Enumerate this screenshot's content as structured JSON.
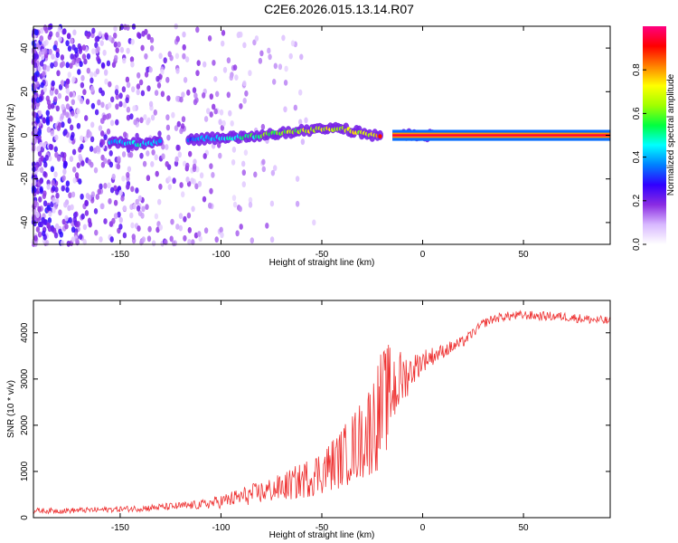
{
  "figure_title": "C2E6.2026.015.13.14.R07",
  "chart_data": [
    {
      "type": "heatmap",
      "title": "C2E6.2026.015.13.14.R07",
      "xlabel": "Height of straight line (km)",
      "ylabel": "Frequency (Hz)",
      "xlim": [
        -193,
        93
      ],
      "ylim": [
        -50,
        50
      ],
      "xticks": [
        -150,
        -100,
        -50,
        0,
        50
      ],
      "xtick_labels": [
        "-150",
        "-100",
        "-50",
        "0",
        "50"
      ],
      "yticks": [
        -40,
        -20,
        0,
        20,
        40
      ],
      "ytick_labels": [
        "-40",
        "-20",
        "0",
        "20",
        "40"
      ],
      "grid": false,
      "ridge_frequency": {
        "height_km": [
          -155,
          -140,
          -130,
          -115,
          -100,
          -90,
          -80,
          -70,
          -60,
          -50,
          -40,
          -30,
          -25,
          -20,
          -10,
          0,
          5,
          93
        ],
        "frequency_hz": [
          -3,
          -4,
          -3,
          -2,
          -1,
          -1,
          0,
          1,
          2,
          3,
          3,
          1,
          0,
          0,
          0,
          0,
          0,
          0
        ],
        "normalized_amplitude": [
          0.45,
          0.5,
          0.4,
          0.35,
          0.5,
          0.55,
          0.6,
          0.65,
          0.7,
          0.75,
          0.7,
          0.75,
          0.8,
          0.9,
          0.85,
          0.85,
          0.9,
          0.9
        ]
      },
      "colorbar": {
        "label": "Normalized spectral amplitude",
        "range": [
          0,
          1
        ],
        "ticks": [
          0,
          0.2,
          0.4,
          0.6,
          0.8
        ],
        "tick_labels": [
          "0.0",
          "0.2",
          "0.4",
          "0.6",
          "0.8"
        ],
        "colormap": [
          "#ffffff",
          "#d8b8ff",
          "#8a2be2",
          "#3000ff",
          "#0080ff",
          "#00ffff",
          "#00ff40",
          "#a0ff00",
          "#ffff00",
          "#ff8000",
          "#ff0000",
          "#ff0080"
        ]
      }
    },
    {
      "type": "line",
      "xlabel": "Height of straight line (km)",
      "ylabel": "SNR (10 * v/v)",
      "xlim": [
        -193,
        93
      ],
      "ylim": [
        0,
        4700
      ],
      "xticks": [
        -150,
        -100,
        -50,
        0,
        50
      ],
      "xtick_labels": [
        "-150",
        "-100",
        "-50",
        "0",
        "50"
      ],
      "yticks": [
        0,
        1000,
        2000,
        3000,
        4000
      ],
      "ytick_labels": [
        "0",
        "1000",
        "2000",
        "3000",
        "4000"
      ],
      "grid": false,
      "series": [
        {
          "name": "SNR",
          "color": "#ee3333",
          "x": [
            -193,
            -180,
            -160,
            -140,
            -120,
            -110,
            -100,
            -90,
            -80,
            -70,
            -60,
            -50,
            -40,
            -30,
            -25,
            -20,
            -15,
            -10,
            -5,
            0,
            5,
            10,
            15,
            20,
            25,
            30,
            35,
            40,
            50,
            60,
            70,
            80,
            93
          ],
          "y": [
            150,
            150,
            170,
            200,
            250,
            280,
            350,
            450,
            550,
            650,
            800,
            1000,
            1300,
            1700,
            2000,
            2400,
            2800,
            3000,
            3200,
            3400,
            3500,
            3600,
            3700,
            3800,
            4000,
            4200,
            4300,
            4350,
            4380,
            4360,
            4350,
            4300,
            4250
          ],
          "noise_amplitude": [
            60,
            60,
            60,
            70,
            90,
            100,
            150,
            200,
            250,
            300,
            400,
            500,
            650,
            900,
            1100,
            1300,
            1000,
            600,
            350,
            250,
            200,
            150,
            150,
            120,
            100,
            100,
            100,
            100,
            100,
            100,
            100,
            100,
            100
          ]
        }
      ]
    }
  ]
}
